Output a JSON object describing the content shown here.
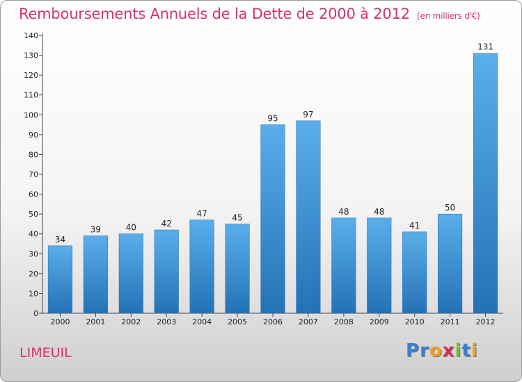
{
  "title": "Remboursements Annuels de la Dette de 2000 à 2012",
  "unit": "(en milliers d'€)",
  "commune": "LIMEUIL",
  "logo": {
    "letters": [
      "P",
      "r",
      "o",
      "x",
      "i",
      "t",
      "i"
    ],
    "colors": [
      "#3a7fd0",
      "#3a7fd0",
      "#f29f1e",
      "#d02f5a",
      "#7fbb33",
      "#3a7fd0",
      "#f29f1e"
    ]
  },
  "chart_data": {
    "type": "bar",
    "title": "Remboursements Annuels de la Dette de 2000 à 2012",
    "categories": [
      "2000",
      "2001",
      "2002",
      "2003",
      "2004",
      "2005",
      "2006",
      "2007",
      "2008",
      "2009",
      "2010",
      "2011",
      "2012"
    ],
    "values": [
      34,
      39,
      40,
      42,
      47,
      45,
      95,
      97,
      48,
      48,
      41,
      50,
      131
    ],
    "ylim": [
      0,
      140
    ],
    "yticks": [
      0,
      10,
      20,
      30,
      40,
      50,
      60,
      70,
      80,
      90,
      100,
      110,
      120,
      130,
      140
    ],
    "grid": false,
    "bar_color": "#3d8fd6"
  }
}
